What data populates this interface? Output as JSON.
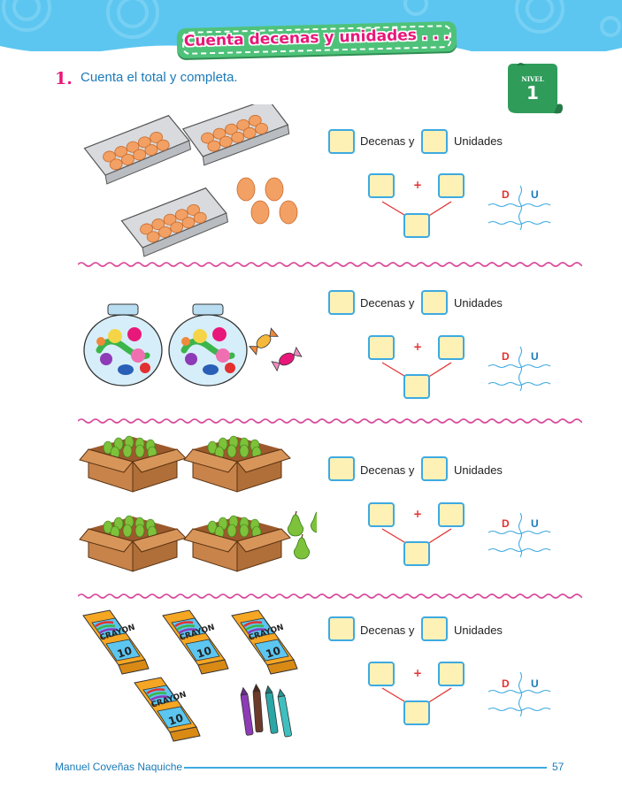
{
  "header": {
    "title": "Cuenta decenas y unidades . . ."
  },
  "instruction": {
    "number": "1.",
    "text": "Cuenta el total y completa."
  },
  "level": {
    "label": "NIVEL",
    "number": "1"
  },
  "exercises": [
    {
      "item": "eggs",
      "decenas_label": "Decenas y",
      "unidades_label": "Unidades",
      "plus": "+",
      "d_label": "D",
      "u_label": "U"
    },
    {
      "item": "candy",
      "decenas_label": "Decenas y",
      "unidades_label": "Unidades",
      "plus": "+",
      "d_label": "D",
      "u_label": "U"
    },
    {
      "item": "pears",
      "decenas_label": "Decenas y",
      "unidades_label": "Unidades",
      "plus": "+",
      "d_label": "D",
      "u_label": "U"
    },
    {
      "item": "crayons",
      "decenas_label": "Decenas y",
      "unidades_label": "Unidades",
      "plus": "+",
      "d_label": "D",
      "u_label": "U"
    }
  ],
  "crayon_box": {
    "brand": "CRAYON",
    "count": "10"
  },
  "footer": {
    "author": "Manuel Coveñas Naquiche",
    "page": "57"
  },
  "colors": {
    "accent_pink": "#e8187a",
    "accent_blue": "#1a7ab8",
    "box_fill": "#fdf1b6",
    "box_border": "#3daae0",
    "banner_green": "#4fc27a"
  }
}
